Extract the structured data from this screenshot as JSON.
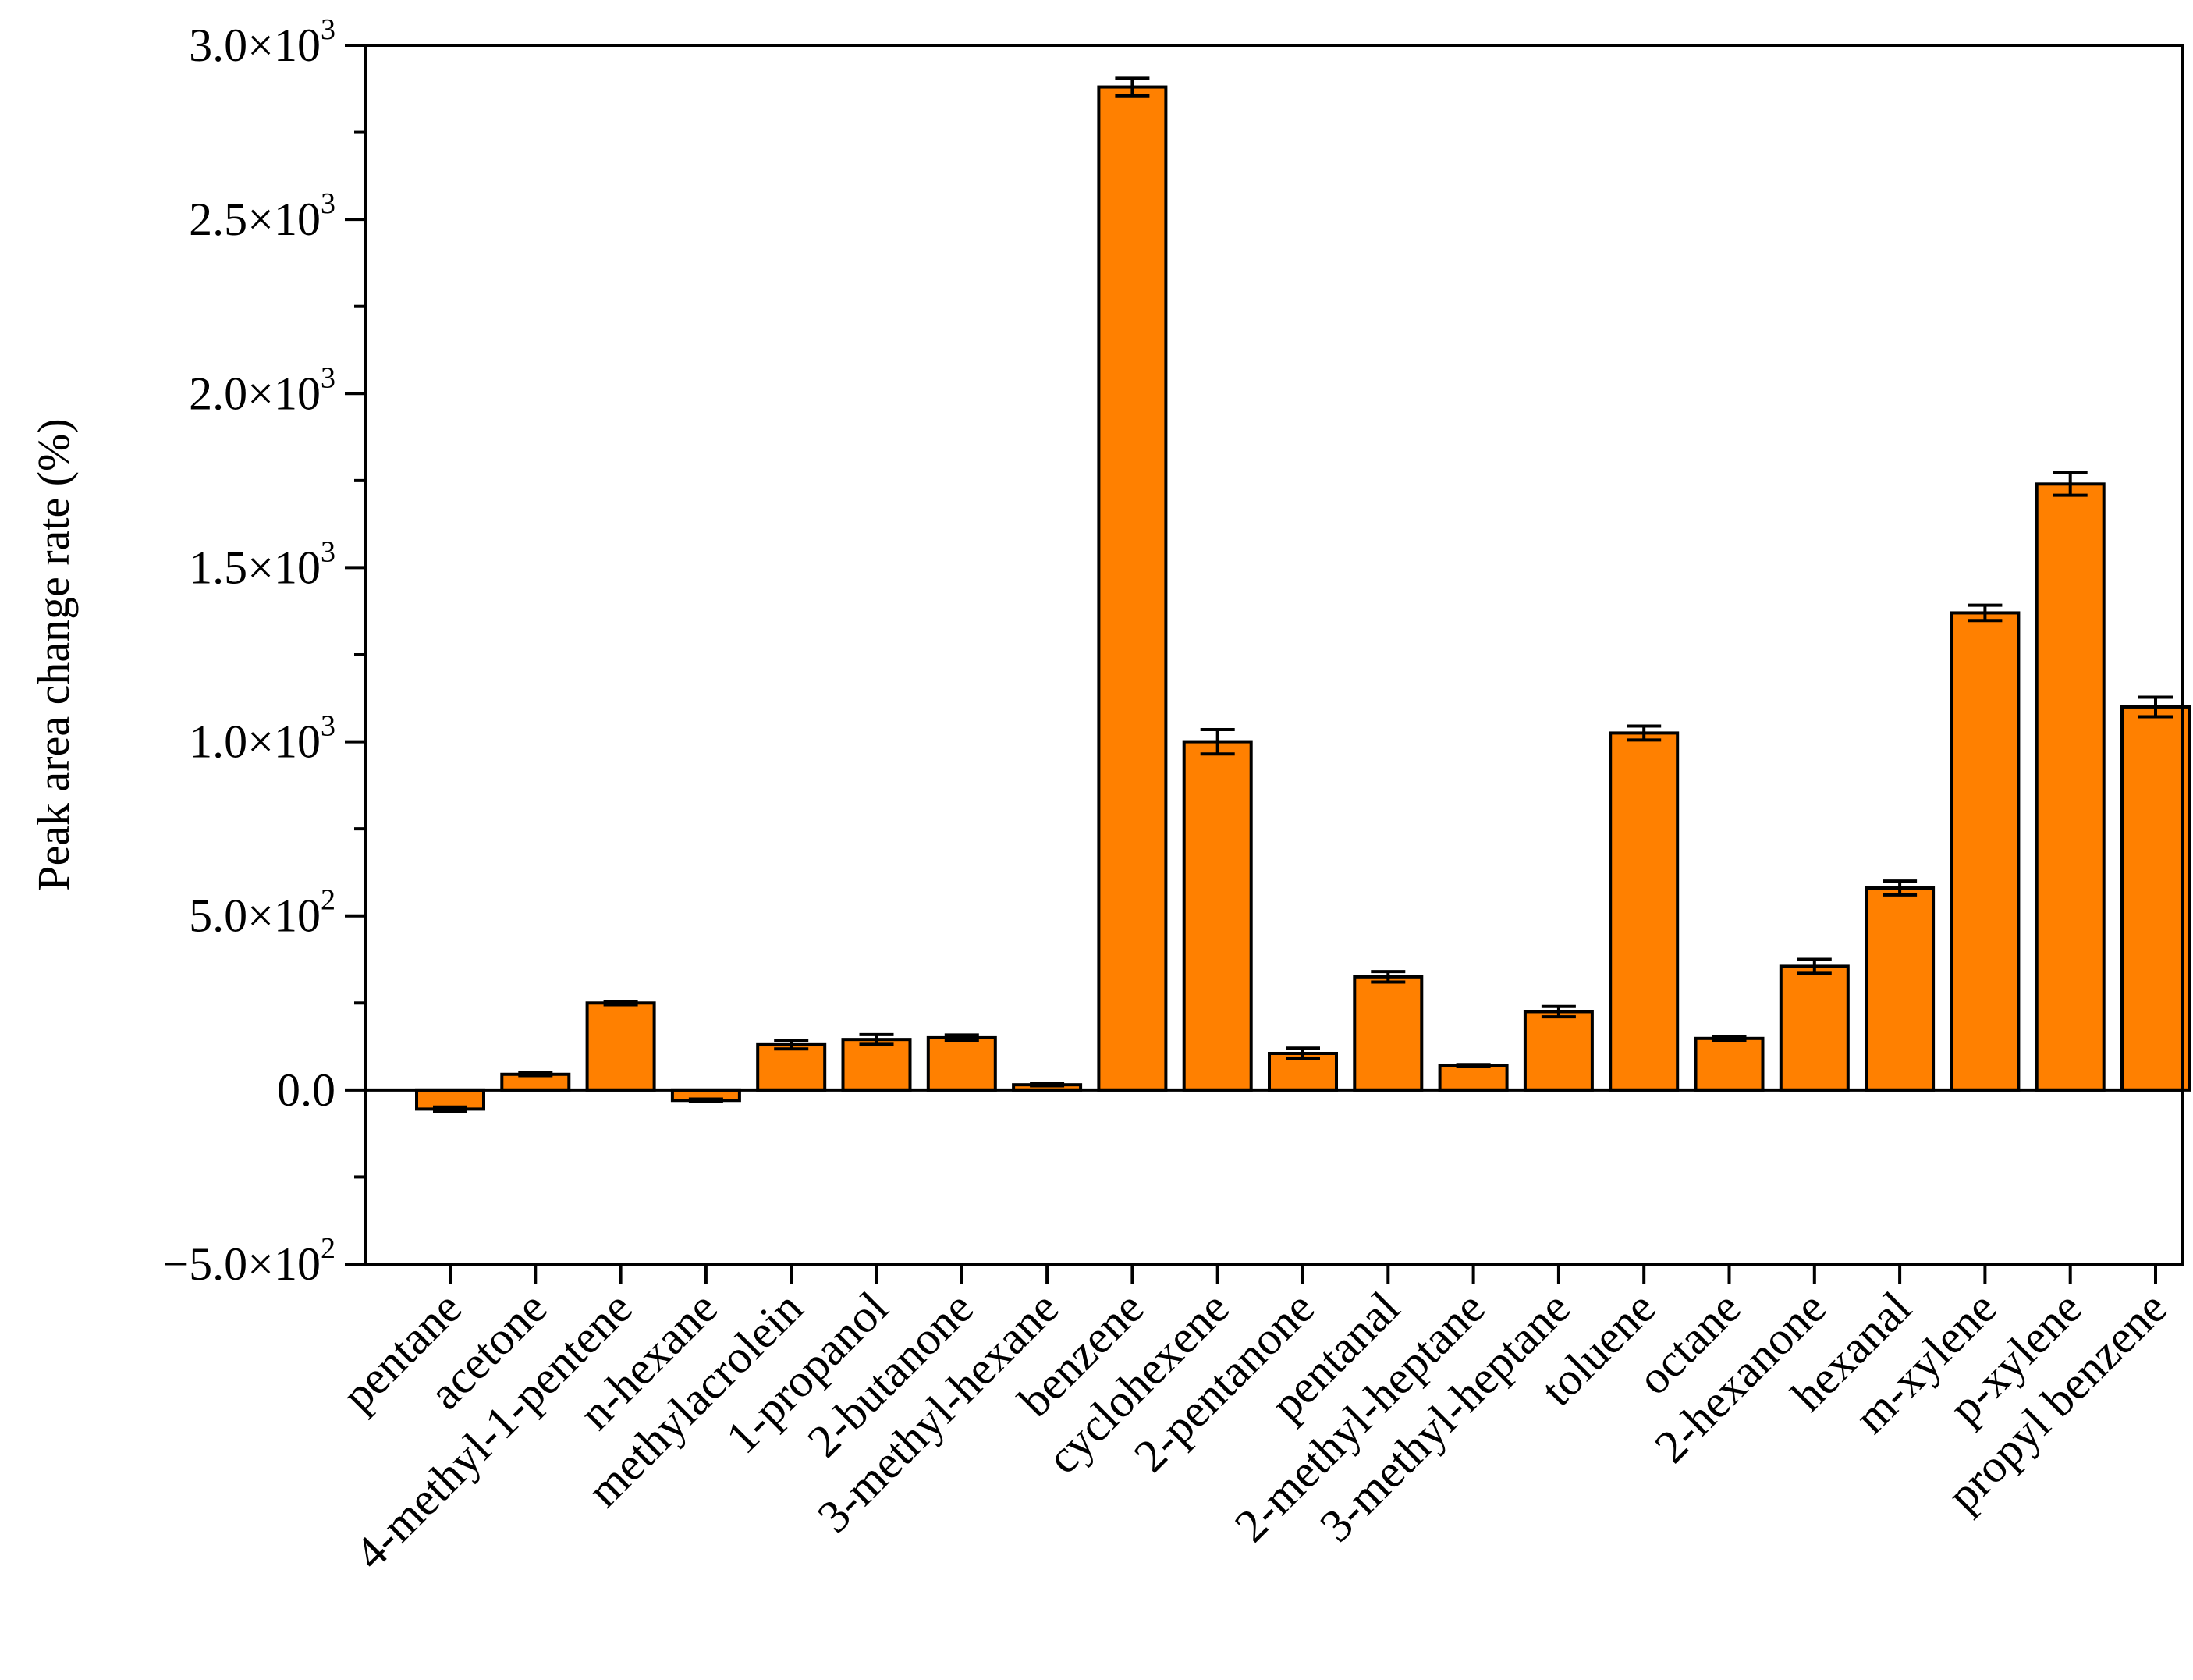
{
  "chart_data": {
    "type": "bar",
    "title": "",
    "xlabel": "",
    "ylabel": "Peak area change rate (%)",
    "ylim": [
      -500,
      3000
    ],
    "grid": false,
    "bar_color": "#FF8000",
    "edge_color": "#000000",
    "categories": [
      "pentane",
      "acetone",
      "4-methyl-1-pentene",
      "n-hexane",
      "methylacrolein",
      "1-propanol",
      "2-butanone",
      "3-methyl-hexane",
      "benzene",
      "cyclohexene",
      "2-pentanone",
      "pentanal",
      "2-methyl-heptane",
      "3-methyl-heptane",
      "toluene",
      "octane",
      "2-hexanone",
      "hexanal",
      "m-xylene",
      "p-xylene",
      "propyl benzene"
    ],
    "values": [
      -55,
      45,
      250,
      -30,
      130,
      145,
      150,
      15,
      2880,
      1000,
      105,
      325,
      70,
      225,
      1025,
      148,
      355,
      580,
      1370,
      1740,
      1100
    ],
    "errors": [
      6,
      4,
      5,
      4,
      12,
      14,
      8,
      3,
      25,
      35,
      15,
      15,
      3,
      15,
      20,
      6,
      20,
      20,
      22,
      32,
      28
    ],
    "yticks": [
      {
        "value": -500,
        "mantissa": "−5.0×10",
        "exp": "2"
      },
      {
        "value": 0,
        "mantissa": "0.0",
        "exp": ""
      },
      {
        "value": 500,
        "mantissa": "5.0×10",
        "exp": "2"
      },
      {
        "value": 1000,
        "mantissa": "1.0×10",
        "exp": "3"
      },
      {
        "value": 1500,
        "mantissa": "1.5×10",
        "exp": "3"
      },
      {
        "value": 2000,
        "mantissa": "2.0×10",
        "exp": "3"
      },
      {
        "value": 2500,
        "mantissa": "2.5×10",
        "exp": "3"
      },
      {
        "value": 3000,
        "mantissa": "3.0×10",
        "exp": "3"
      }
    ],
    "minor_step": 250
  }
}
